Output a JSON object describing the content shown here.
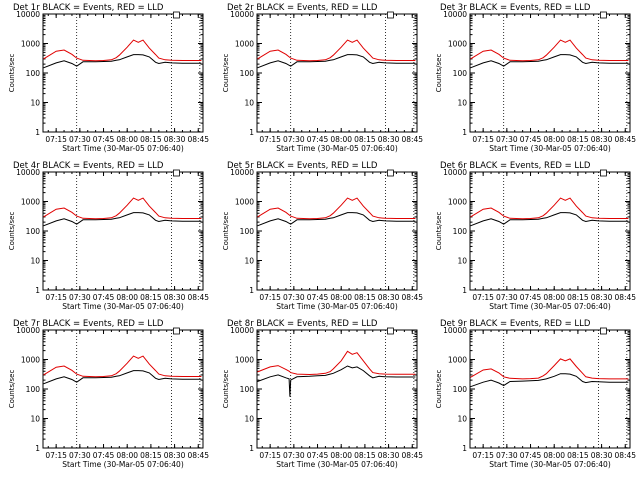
{
  "chart_data": [
    {
      "type": "line",
      "title": "Det 1r BLACK = Events, RED = LLD",
      "xlabel": "Start Time (30-Mar-05 07:06:40)",
      "ylabel": "Counts/sec",
      "x_tick_labels": [
        "07:15",
        "07:30",
        "07:45",
        "08:00",
        "08:15",
        "08:30",
        "08:45"
      ],
      "y_tick_labels": [
        "1",
        "10",
        "100",
        "1000",
        "10000"
      ],
      "ylim": [
        1,
        10000
      ],
      "y_scale": "log",
      "x_range": [
        "07:06:40",
        "08:48:00"
      ],
      "x": [
        "07:07",
        "07:15",
        "07:20",
        "07:25",
        "07:28",
        "07:32",
        "07:40",
        "07:45",
        "07:50",
        "07:53",
        "07:55",
        "08:00",
        "08:04",
        "08:07",
        "08:10",
        "08:14",
        "08:18",
        "08:20",
        "08:24",
        "08:28",
        "08:35",
        "08:43",
        "08:47"
      ],
      "series": [
        {
          "name": "BLACK",
          "color": "#000000",
          "values": [
            150,
            220,
            260,
            210,
            170,
            240,
            240,
            245,
            250,
            270,
            280,
            350,
            420,
            420,
            410,
            350,
            230,
            210,
            230,
            220,
            215,
            215,
            215
          ]
        },
        {
          "name": "RED",
          "color": "#e00000",
          "values": [
            300,
            550,
            600,
            430,
            320,
            270,
            260,
            265,
            280,
            330,
            400,
            750,
            1300,
            1100,
            1300,
            700,
            420,
            320,
            280,
            270,
            265,
            265,
            265
          ]
        }
      ],
      "vlines": [
        "07:28",
        "08:28",
        "08:46"
      ]
    },
    {
      "type": "line",
      "title": "Det 2r BLACK = Events, RED = LLD",
      "xlabel": "Start Time (30-Mar-05 07:06:40)",
      "ylabel": "Counts/sec",
      "x_tick_labels": [
        "07:15",
        "07:30",
        "07:45",
        "08:00",
        "08:15",
        "08:30",
        "08:45"
      ],
      "y_tick_labels": [
        "1",
        "10",
        "100",
        "1000",
        "10000"
      ],
      "ylim": [
        1,
        10000
      ],
      "y_scale": "log",
      "x_range": [
        "07:06:40",
        "08:48:00"
      ],
      "x": [
        "07:07",
        "07:15",
        "07:20",
        "07:25",
        "07:28",
        "07:32",
        "07:40",
        "07:45",
        "07:50",
        "07:53",
        "07:55",
        "08:00",
        "08:04",
        "08:07",
        "08:10",
        "08:14",
        "08:18",
        "08:20",
        "08:24",
        "08:28",
        "08:35",
        "08:43",
        "08:47"
      ],
      "series": [
        {
          "name": "BLACK",
          "color": "#000000",
          "values": [
            150,
            220,
            260,
            210,
            170,
            240,
            240,
            245,
            250,
            270,
            280,
            350,
            420,
            420,
            410,
            350,
            230,
            210,
            230,
            220,
            215,
            215,
            215
          ]
        },
        {
          "name": "RED",
          "color": "#e00000",
          "values": [
            300,
            550,
            600,
            430,
            320,
            270,
            260,
            265,
            280,
            330,
            400,
            750,
            1300,
            1100,
            1300,
            700,
            420,
            320,
            280,
            270,
            265,
            265,
            265
          ]
        }
      ],
      "vlines": [
        "07:28",
        "08:28",
        "08:46"
      ]
    },
    {
      "type": "line",
      "title": "Det 3r BLACK = Events, RED = LLD",
      "xlabel": "Start Time (30-Mar-05 07:06:40)",
      "ylabel": "Counts/sec",
      "x_tick_labels": [
        "07:15",
        "07:30",
        "07:45",
        "08:00",
        "08:15",
        "08:30",
        "08:45"
      ],
      "y_tick_labels": [
        "1",
        "10",
        "100",
        "1000",
        "10000"
      ],
      "ylim": [
        1,
        10000
      ],
      "y_scale": "log",
      "x_range": [
        "07:06:40",
        "08:48:00"
      ],
      "x": [
        "07:07",
        "07:15",
        "07:20",
        "07:25",
        "07:28",
        "07:32",
        "07:40",
        "07:45",
        "07:50",
        "07:53",
        "07:55",
        "08:00",
        "08:04",
        "08:07",
        "08:10",
        "08:14",
        "08:18",
        "08:20",
        "08:24",
        "08:28",
        "08:35",
        "08:43",
        "08:47"
      ],
      "series": [
        {
          "name": "BLACK",
          "color": "#000000",
          "values": [
            150,
            220,
            260,
            210,
            170,
            240,
            240,
            245,
            250,
            270,
            280,
            350,
            420,
            420,
            410,
            350,
            230,
            210,
            230,
            220,
            215,
            215,
            215
          ]
        },
        {
          "name": "RED",
          "color": "#e00000",
          "values": [
            300,
            550,
            600,
            430,
            320,
            270,
            260,
            265,
            280,
            330,
            400,
            750,
            1300,
            1100,
            1300,
            700,
            420,
            320,
            280,
            270,
            265,
            265,
            265
          ]
        }
      ],
      "vlines": [
        "07:28",
        "08:28",
        "08:46"
      ]
    },
    {
      "type": "line",
      "title": "Det 4r BLACK = Events, RED = LLD",
      "xlabel": "Start Time (30-Mar-05 07:06:40)",
      "ylabel": "Counts/sec",
      "x_tick_labels": [
        "07:15",
        "07:30",
        "07:45",
        "08:00",
        "08:15",
        "08:30",
        "08:45"
      ],
      "y_tick_labels": [
        "1",
        "10",
        "100",
        "1000",
        "10000"
      ],
      "ylim": [
        1,
        10000
      ],
      "y_scale": "log",
      "x_range": [
        "07:06:40",
        "08:48:00"
      ],
      "x": [
        "07:07",
        "07:15",
        "07:20",
        "07:25",
        "07:28",
        "07:32",
        "07:40",
        "07:45",
        "07:50",
        "07:53",
        "07:55",
        "08:00",
        "08:04",
        "08:07",
        "08:10",
        "08:14",
        "08:18",
        "08:20",
        "08:24",
        "08:28",
        "08:35",
        "08:43",
        "08:47"
      ],
      "series": [
        {
          "name": "BLACK",
          "color": "#000000",
          "values": [
            150,
            220,
            260,
            210,
            170,
            240,
            240,
            245,
            250,
            270,
            280,
            350,
            420,
            420,
            410,
            350,
            230,
            210,
            230,
            220,
            215,
            215,
            215
          ]
        },
        {
          "name": "RED",
          "color": "#e00000",
          "values": [
            300,
            550,
            600,
            430,
            320,
            270,
            260,
            265,
            280,
            330,
            400,
            750,
            1300,
            1100,
            1300,
            700,
            420,
            320,
            280,
            270,
            265,
            265,
            265
          ]
        }
      ],
      "vlines": [
        "07:28",
        "08:28",
        "08:46"
      ]
    },
    {
      "type": "line",
      "title": "Det 5r BLACK = Events, RED = LLD",
      "xlabel": "Start Time (30-Mar-05 07:06:40)",
      "ylabel": "Counts/sec",
      "x_tick_labels": [
        "07:15",
        "07:30",
        "07:45",
        "08:00",
        "08:15",
        "08:30",
        "08:45"
      ],
      "y_tick_labels": [
        "1",
        "10",
        "100",
        "1000",
        "10000"
      ],
      "ylim": [
        1,
        10000
      ],
      "y_scale": "log",
      "x_range": [
        "07:06:40",
        "08:48:00"
      ],
      "x": [
        "07:07",
        "07:15",
        "07:20",
        "07:25",
        "07:28",
        "07:32",
        "07:40",
        "07:45",
        "07:50",
        "07:53",
        "07:55",
        "08:00",
        "08:04",
        "08:07",
        "08:10",
        "08:14",
        "08:18",
        "08:20",
        "08:24",
        "08:28",
        "08:35",
        "08:43",
        "08:47"
      ],
      "series": [
        {
          "name": "BLACK",
          "color": "#000000",
          "values": [
            150,
            220,
            260,
            210,
            170,
            240,
            240,
            245,
            250,
            270,
            280,
            350,
            420,
            420,
            410,
            350,
            230,
            210,
            230,
            220,
            215,
            215,
            215
          ]
        },
        {
          "name": "RED",
          "color": "#e00000",
          "values": [
            300,
            550,
            600,
            430,
            320,
            270,
            260,
            265,
            280,
            330,
            400,
            750,
            1300,
            1100,
            1300,
            700,
            420,
            320,
            280,
            270,
            265,
            265,
            265
          ]
        }
      ],
      "vlines": [
        "07:28",
        "08:28",
        "08:46"
      ]
    },
    {
      "type": "line",
      "title": "Det 6r BLACK = Events, RED = LLD",
      "xlabel": "Start Time (30-Mar-05 07:06:40)",
      "ylabel": "Counts/sec",
      "x_tick_labels": [
        "07:15",
        "07:30",
        "07:45",
        "08:00",
        "08:15",
        "08:30",
        "08:45"
      ],
      "y_tick_labels": [
        "1",
        "10",
        "100",
        "1000",
        "10000"
      ],
      "ylim": [
        1,
        10000
      ],
      "y_scale": "log",
      "x_range": [
        "07:06:40",
        "08:48:00"
      ],
      "x": [
        "07:07",
        "07:15",
        "07:20",
        "07:25",
        "07:28",
        "07:32",
        "07:40",
        "07:45",
        "07:50",
        "07:53",
        "07:55",
        "08:00",
        "08:04",
        "08:07",
        "08:10",
        "08:14",
        "08:18",
        "08:20",
        "08:24",
        "08:28",
        "08:35",
        "08:43",
        "08:47"
      ],
      "series": [
        {
          "name": "BLACK",
          "color": "#000000",
          "values": [
            150,
            220,
            260,
            210,
            170,
            240,
            240,
            245,
            250,
            270,
            280,
            350,
            420,
            420,
            410,
            350,
            230,
            210,
            230,
            220,
            215,
            215,
            215
          ]
        },
        {
          "name": "RED",
          "color": "#e00000",
          "values": [
            300,
            550,
            600,
            430,
            320,
            270,
            260,
            265,
            280,
            330,
            400,
            750,
            1300,
            1100,
            1300,
            700,
            420,
            320,
            280,
            270,
            265,
            265,
            265
          ]
        }
      ],
      "vlines": [
        "07:28",
        "08:28",
        "08:46"
      ]
    },
    {
      "type": "line",
      "title": "Det 7r BLACK = Events, RED = LLD",
      "xlabel": "Start Time (30-Mar-05 07:06:40)",
      "ylabel": "Counts/sec",
      "x_tick_labels": [
        "07:15",
        "07:30",
        "07:45",
        "08:00",
        "08:15",
        "08:30",
        "08:45"
      ],
      "y_tick_labels": [
        "1",
        "10",
        "100",
        "1000",
        "10000"
      ],
      "ylim": [
        1,
        10000
      ],
      "y_scale": "log",
      "x_range": [
        "07:06:40",
        "08:48:00"
      ],
      "x": [
        "07:07",
        "07:15",
        "07:20",
        "07:25",
        "07:28",
        "07:32",
        "07:40",
        "07:45",
        "07:50",
        "07:53",
        "07:55",
        "08:00",
        "08:04",
        "08:07",
        "08:10",
        "08:14",
        "08:18",
        "08:20",
        "08:24",
        "08:28",
        "08:35",
        "08:43",
        "08:47"
      ],
      "series": [
        {
          "name": "BLACK",
          "color": "#000000",
          "values": [
            150,
            220,
            260,
            210,
            170,
            240,
            240,
            245,
            250,
            270,
            280,
            350,
            420,
            420,
            410,
            350,
            230,
            210,
            230,
            220,
            215,
            215,
            215
          ]
        },
        {
          "name": "RED",
          "color": "#e00000",
          "values": [
            300,
            550,
            600,
            430,
            320,
            270,
            260,
            265,
            280,
            330,
            400,
            750,
            1300,
            1100,
            1300,
            700,
            420,
            320,
            280,
            270,
            265,
            265,
            265
          ]
        }
      ],
      "vlines": [
        "07:28",
        "08:28",
        "08:46"
      ]
    },
    {
      "type": "line",
      "title": "Det 8r BLACK = Events, RED = LLD",
      "xlabel": "Start Time (30-Mar-05 07:06:40)",
      "ylabel": "Counts/sec",
      "x_tick_labels": [
        "07:15",
        "07:30",
        "07:45",
        "08:00",
        "08:15",
        "08:30",
        "08:45"
      ],
      "y_tick_labels": [
        "1",
        "10",
        "100",
        "1000",
        "10000"
      ],
      "ylim": [
        1,
        10000
      ],
      "y_scale": "log",
      "x_range": [
        "07:06:40",
        "08:48:00"
      ],
      "x": [
        "07:07",
        "07:15",
        "07:20",
        "07:25",
        "07:27",
        "07:27.5",
        "07:28",
        "07:32",
        "07:40",
        "07:45",
        "07:50",
        "07:53",
        "07:55",
        "08:00",
        "08:04",
        "08:07",
        "08:10",
        "08:14",
        "08:18",
        "08:20",
        "08:24",
        "08:28",
        "08:35",
        "08:43",
        "08:47"
      ],
      "series": [
        {
          "name": "BLACK",
          "color": "#000000",
          "values": [
            180,
            260,
            300,
            240,
            220,
            55,
            200,
            260,
            270,
            280,
            290,
            320,
            340,
            450,
            600,
            520,
            560,
            420,
            280,
            240,
            270,
            260,
            255,
            255,
            255
          ]
        },
        {
          "name": "RED",
          "color": "#e00000",
          "values": [
            380,
            560,
            620,
            460,
            400,
            380,
            360,
            320,
            310,
            320,
            340,
            390,
            480,
            900,
            1900,
            1500,
            1700,
            900,
            480,
            360,
            330,
            320,
            315,
            315,
            315
          ]
        }
      ],
      "vlines": [
        "07:28",
        "08:28",
        "08:46"
      ]
    },
    {
      "type": "line",
      "title": "Det 9r BLACK = Events, RED = LLD",
      "xlabel": "Start Time (30-Mar-05 07:06:40)",
      "ylabel": "Counts/sec",
      "x_tick_labels": [
        "07:15",
        "07:30",
        "07:45",
        "08:00",
        "08:15",
        "08:30",
        "08:45"
      ],
      "y_tick_labels": [
        "1",
        "10",
        "100",
        "1000",
        "10000"
      ],
      "ylim": [
        1,
        10000
      ],
      "y_scale": "log",
      "x_range": [
        "07:06:40",
        "08:48:00"
      ],
      "x": [
        "07:07",
        "07:15",
        "07:20",
        "07:25",
        "07:28",
        "07:32",
        "07:40",
        "07:45",
        "07:50",
        "07:53",
        "07:55",
        "08:00",
        "08:04",
        "08:07",
        "08:10",
        "08:14",
        "08:18",
        "08:20",
        "08:24",
        "08:28",
        "08:35",
        "08:43",
        "08:47"
      ],
      "series": [
        {
          "name": "BLACK",
          "color": "#000000",
          "values": [
            120,
            170,
            200,
            160,
            130,
            180,
            185,
            190,
            195,
            210,
            220,
            270,
            330,
            330,
            320,
            270,
            180,
            165,
            180,
            175,
            170,
            170,
            170
          ]
        },
        {
          "name": "RED",
          "color": "#e00000",
          "values": [
            250,
            440,
            480,
            350,
            260,
            230,
            220,
            225,
            235,
            280,
            330,
            620,
            1050,
            900,
            1050,
            580,
            340,
            260,
            235,
            225,
            220,
            220,
            220
          ]
        }
      ],
      "vlines": [
        "07:28",
        "08:28",
        "08:46"
      ]
    }
  ]
}
